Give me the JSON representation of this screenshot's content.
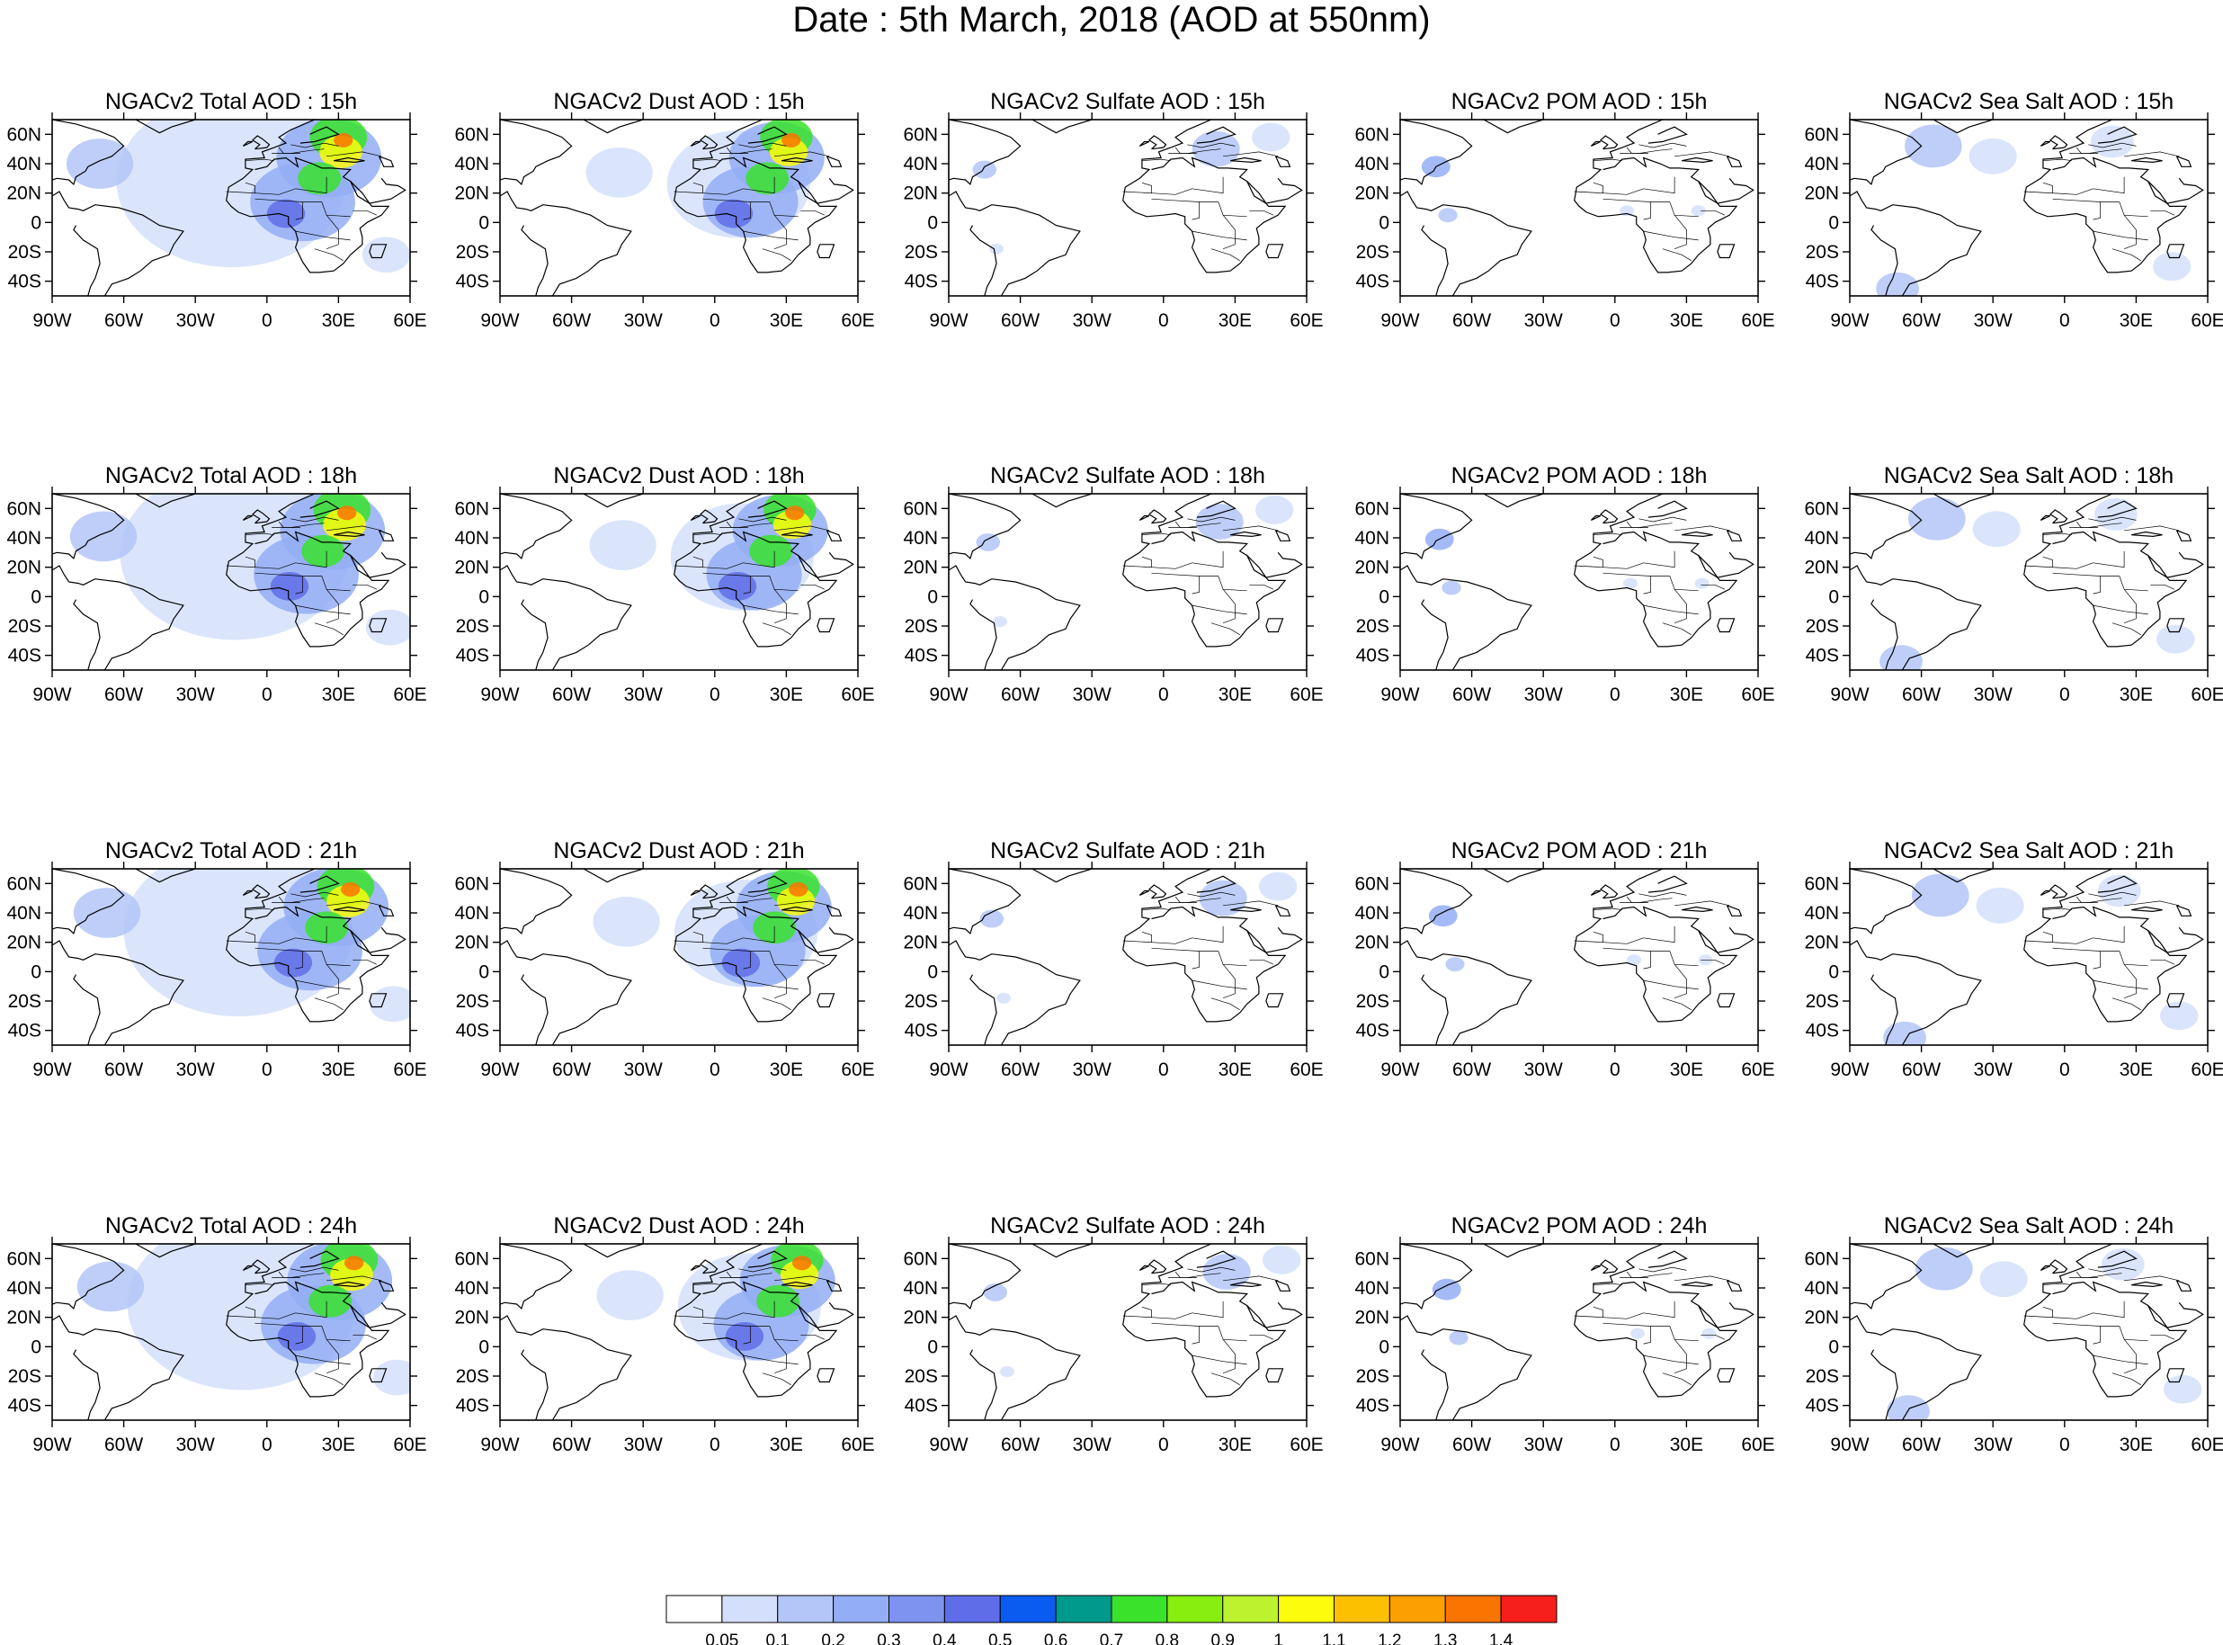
{
  "title": "Date : 5th March, 2018 (AOD at 550nm)",
  "map_extent": {
    "lon": [
      -90,
      60
    ],
    "lat": [
      -50,
      70
    ]
  },
  "x_ticks": [
    {
      "lon": -90,
      "label": "90W"
    },
    {
      "lon": -60,
      "label": "60W"
    },
    {
      "lon": -30,
      "label": "30W"
    },
    {
      "lon": 0,
      "label": "0"
    },
    {
      "lon": 30,
      "label": "30E"
    },
    {
      "lon": 60,
      "label": "60E"
    }
  ],
  "y_ticks": [
    {
      "lat": 60,
      "label": "60N"
    },
    {
      "lat": 40,
      "label": "40N"
    },
    {
      "lat": 20,
      "label": "20N"
    },
    {
      "lat": 0,
      "label": "0"
    },
    {
      "lat": -20,
      "label": "20S"
    },
    {
      "lat": -40,
      "label": "40S"
    }
  ],
  "row_labels": [
    [
      "NGACv2 Total AOD : 15h",
      "NGACv2 Dust AOD : 15h",
      "NGACv2 Sulfate AOD : 15h",
      "NGACv2 POM AOD : 15h",
      "NGACv2 Sea Salt AOD : 15h"
    ],
    [
      "NGACv2 Total AOD : 18h",
      "NGACv2 Dust AOD : 18h",
      "NGACv2 Sulfate AOD : 18h",
      "NGACv2 POM AOD : 18h",
      "NGACv2 Sea Salt AOD : 18h"
    ],
    [
      "NGACv2 Total AOD : 21h",
      "NGACv2 Dust AOD : 21h",
      "NGACv2 Sulfate AOD : 21h",
      "NGACv2 POM AOD : 21h",
      "NGACv2 Sea Salt AOD : 21h"
    ],
    [
      "NGACv2 Total AOD : 24h",
      "NGACv2 Dust AOD : 24h",
      "NGACv2 Sulfate AOD : 24h",
      "NGACv2 POM AOD : 24h",
      "NGACv2 Sea Salt  AOD : 24h"
    ]
  ],
  "colorbar": {
    "colors": [
      "#ffffff",
      "#d4e0fb",
      "#b3c6f7",
      "#93aef5",
      "#7e93f0",
      "#5f6ee8",
      "#0a5cf0",
      "#009a8c",
      "#3ae22c",
      "#87ee10",
      "#bcf22e",
      "#fcfc0c",
      "#fcc000",
      "#fba000",
      "#f97400",
      "#f71f1b"
    ],
    "labels": [
      "0.05",
      "0.1",
      "0.2",
      "0.3",
      "0.4",
      "0.5",
      "0.6",
      "0.7",
      "0.8",
      "0.9",
      "1",
      "1.1",
      "1.2",
      "1.3",
      "1.4"
    ]
  },
  "fields": {
    "total": [
      {
        "lon": -15,
        "lat": 28,
        "r": 48,
        "level": 1
      },
      {
        "lon": 15,
        "lat": 14,
        "r": 22,
        "level": 3
      },
      {
        "lon": 26,
        "lat": 44,
        "r": 22,
        "level": 3
      },
      {
        "lon": 30,
        "lat": 58,
        "r": 12,
        "level": 8
      },
      {
        "lon": 31,
        "lat": 48,
        "r": 9,
        "level": 11
      },
      {
        "lon": 22,
        "lat": 30,
        "r": 9,
        "level": 8
      },
      {
        "lon": 32,
        "lat": 56,
        "r": 4,
        "level": 14
      },
      {
        "lon": 8,
        "lat": 6,
        "r": 8,
        "level": 5
      },
      {
        "lon": -70,
        "lat": 40,
        "r": 14,
        "level": 2
      },
      {
        "lon": 50,
        "lat": -22,
        "r": 10,
        "level": 1
      }
    ],
    "dust": [
      {
        "lon": 10,
        "lat": 26,
        "r": 30,
        "level": 1
      },
      {
        "lon": -40,
        "lat": 34,
        "r": 14,
        "level": 1
      },
      {
        "lon": 15,
        "lat": 14,
        "r": 20,
        "level": 3
      },
      {
        "lon": 26,
        "lat": 44,
        "r": 20,
        "level": 3
      },
      {
        "lon": 30,
        "lat": 58,
        "r": 11,
        "level": 8
      },
      {
        "lon": 31,
        "lat": 48,
        "r": 8,
        "level": 11
      },
      {
        "lon": 22,
        "lat": 30,
        "r": 9,
        "level": 8
      },
      {
        "lon": 32,
        "lat": 56,
        "r": 4,
        "level": 14
      },
      {
        "lon": 8,
        "lat": 6,
        "r": 8,
        "level": 5
      }
    ],
    "sulfate": [
      {
        "lon": 22,
        "lat": 50,
        "r": 10,
        "level": 2
      },
      {
        "lon": 45,
        "lat": 58,
        "r": 8,
        "level": 1
      },
      {
        "lon": -75,
        "lat": 36,
        "r": 5,
        "level": 2
      },
      {
        "lon": -70,
        "lat": -18,
        "r": 3,
        "level": 1
      }
    ],
    "pom": [
      {
        "lon": -75,
        "lat": 38,
        "r": 6,
        "level": 3
      },
      {
        "lon": -70,
        "lat": 5,
        "r": 4,
        "level": 2
      },
      {
        "lon": 5,
        "lat": 8,
        "r": 3,
        "level": 1
      },
      {
        "lon": 35,
        "lat": 8,
        "r": 3,
        "level": 1
      }
    ],
    "seasalt": [
      {
        "lon": -55,
        "lat": 52,
        "r": 12,
        "level": 2
      },
      {
        "lon": -30,
        "lat": 45,
        "r": 10,
        "level": 1
      },
      {
        "lon": 20,
        "lat": 55,
        "r": 9,
        "level": 1
      },
      {
        "lon": -70,
        "lat": -45,
        "r": 9,
        "level": 2
      },
      {
        "lon": 45,
        "lat": -30,
        "r": 8,
        "level": 1
      }
    ]
  }
}
